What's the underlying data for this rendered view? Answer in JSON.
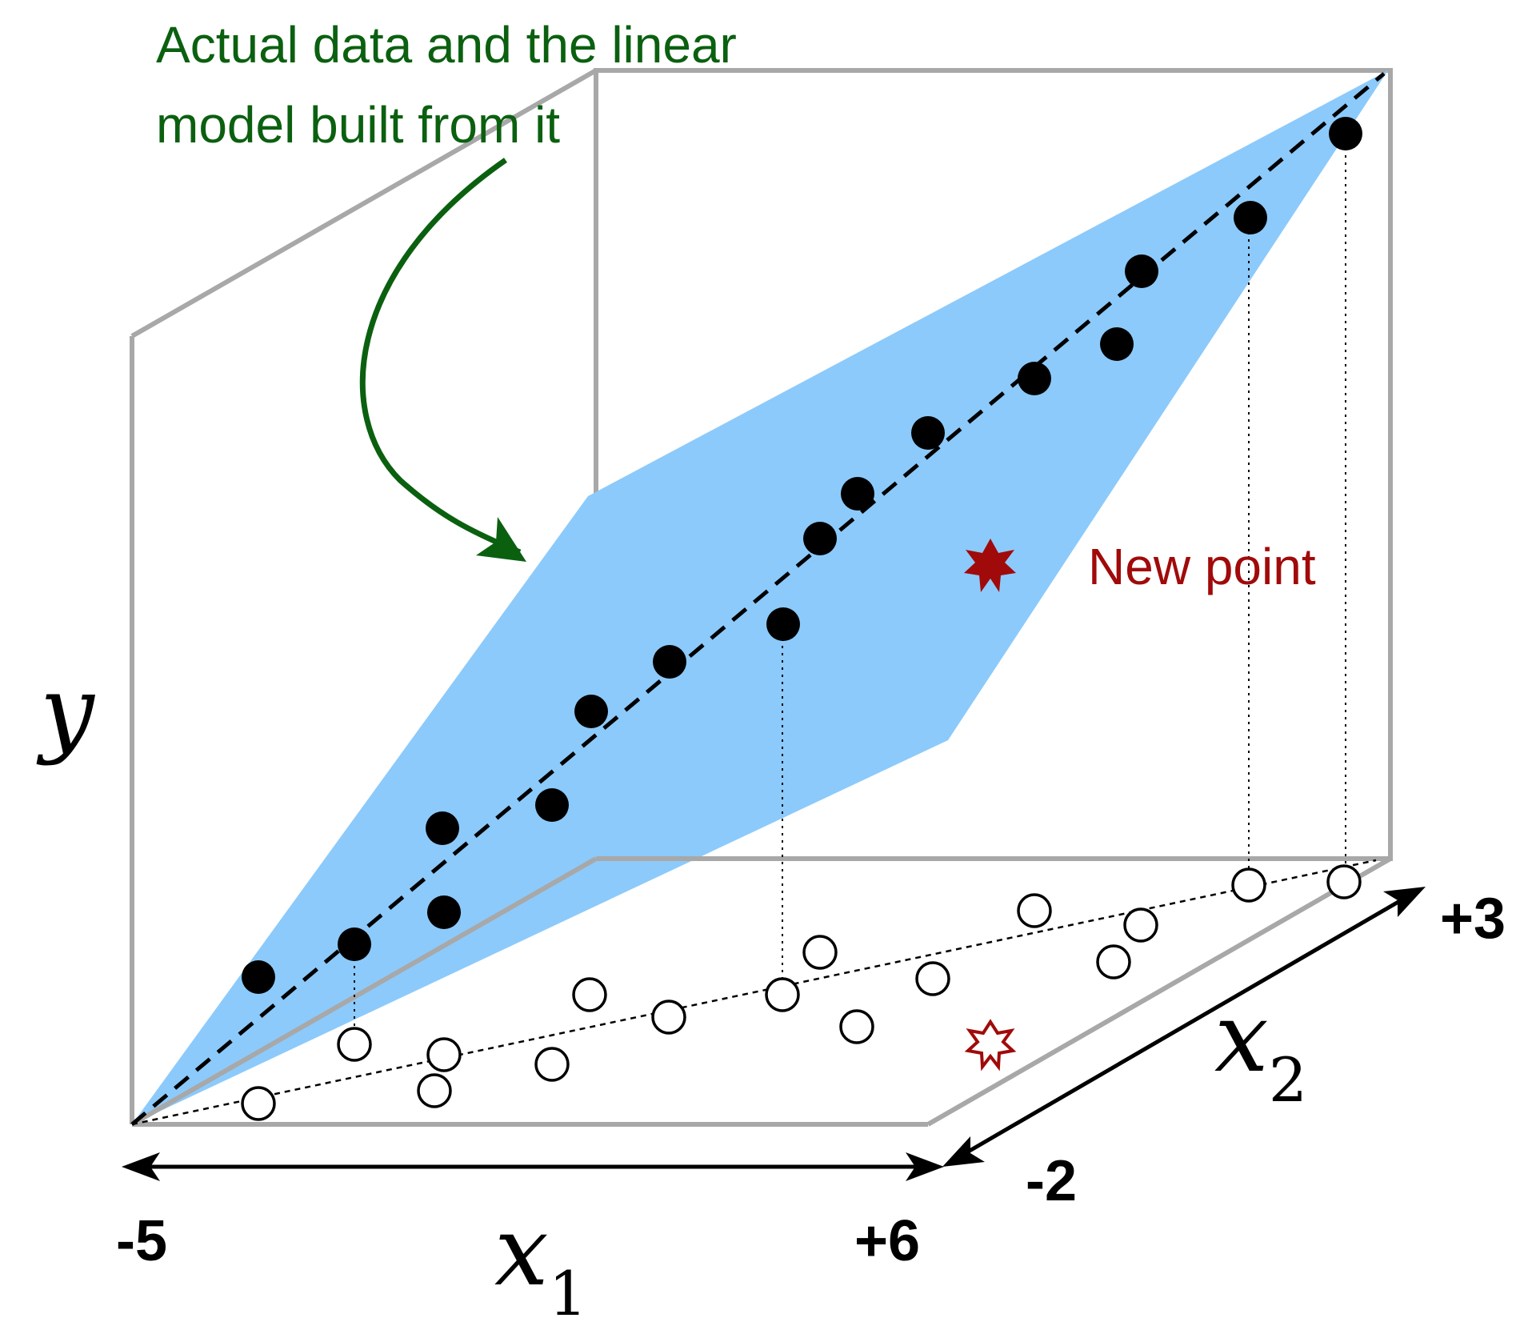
{
  "annotation": {
    "line1": "Actual data and the linear",
    "line2": "model built from it",
    "color": "#0b6010"
  },
  "new_point": {
    "label": "New point",
    "color": "#a10a0a"
  },
  "axes": {
    "y_label": "y",
    "x1_label": "x",
    "x1_subscript": "1",
    "x1_min": "-5",
    "x1_max": "+6",
    "x2_label": "x",
    "x2_subscript": "2",
    "x2_min": "-2",
    "x2_max": "+3"
  },
  "colors": {
    "plane": "#8ccafb",
    "box": "#a8a8a8",
    "points": "#000000"
  }
}
